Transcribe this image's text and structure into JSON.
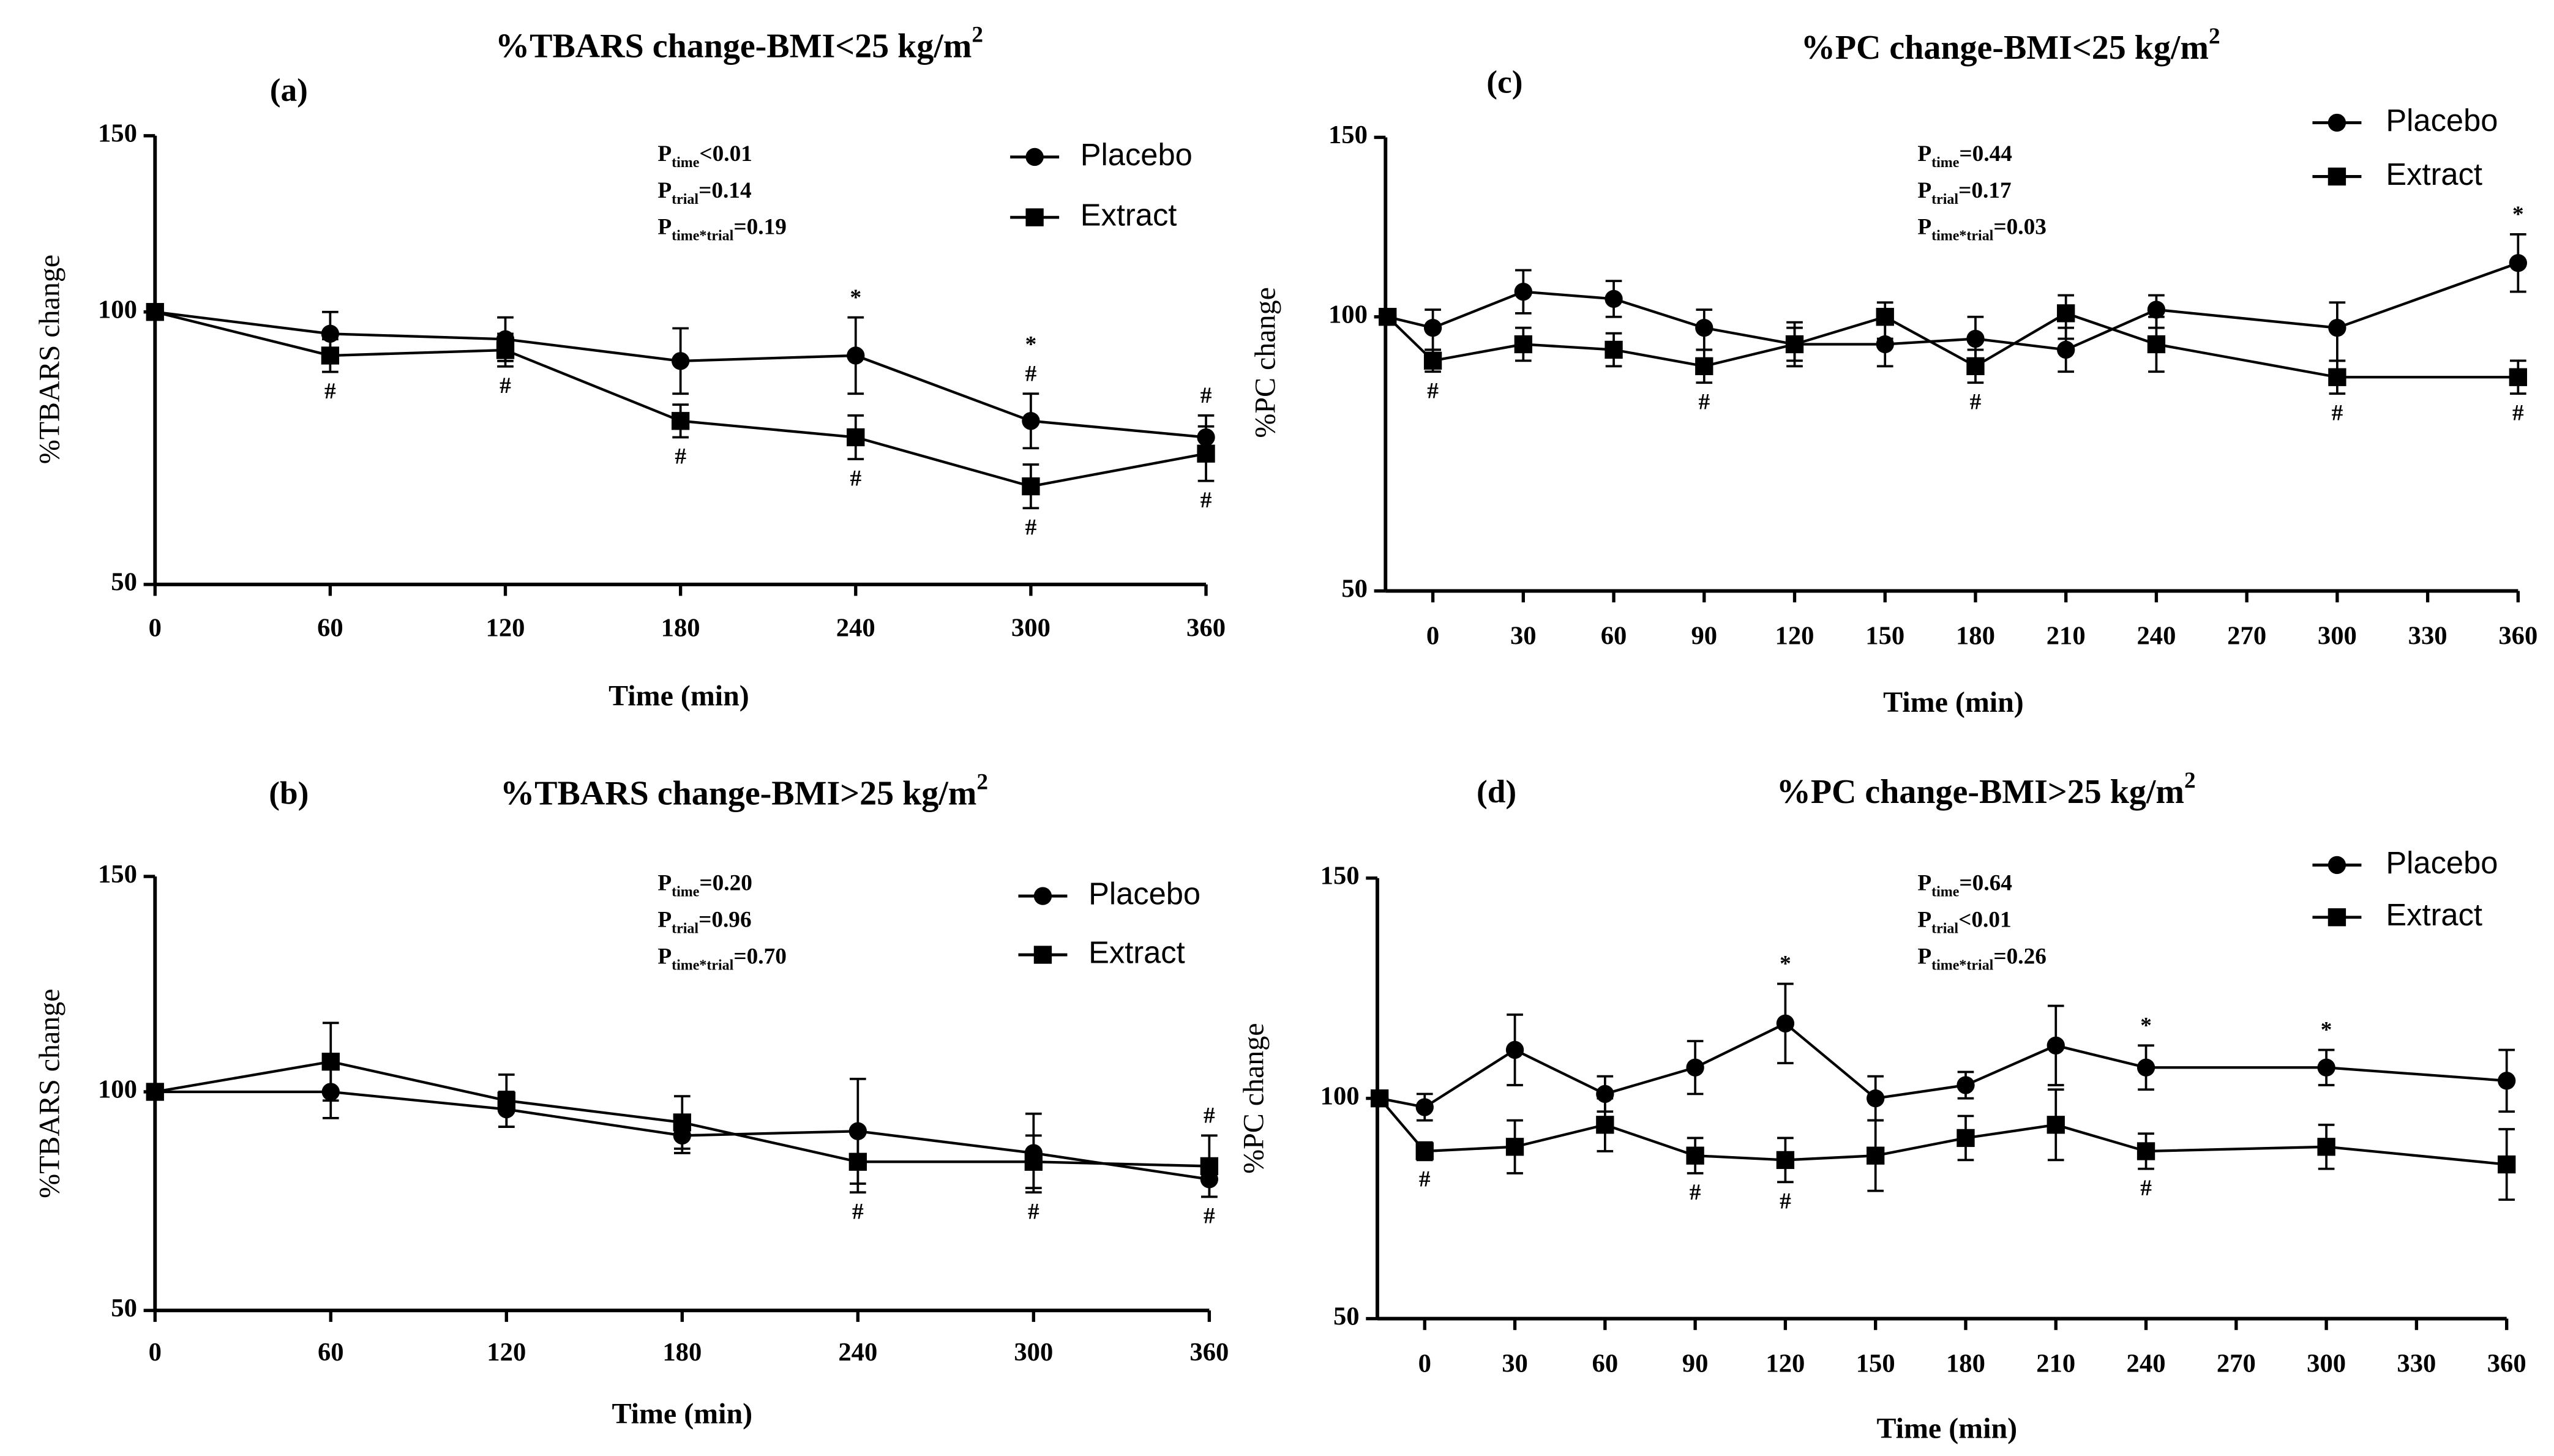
{
  "chart_data": [
    {
      "panel_label": "(a)",
      "type": "line",
      "title": "%TBARS change-BMI<25 kg/m",
      "title_sup": "2",
      "xlabel": "Time (min)",
      "ylabel": "%TBARS change",
      "xticks": [
        0,
        60,
        120,
        180,
        240,
        300,
        360
      ],
      "yticks": [
        50,
        100,
        150
      ],
      "xlim": [
        0,
        360
      ],
      "ylim": [
        50,
        150
      ],
      "grid": false,
      "legend": "top-right",
      "x": [
        0,
        60,
        120,
        180,
        240,
        300,
        360
      ],
      "series": [
        {
          "name": "Placebo",
          "marker": "circle",
          "color": "#000000",
          "values": [
            100,
            96,
            95,
            91,
            92,
            80,
            77
          ],
          "error": [
            0,
            4,
            4,
            6,
            7,
            5,
            4
          ]
        },
        {
          "name": "Extract",
          "marker": "square",
          "color": "#000000",
          "values": [
            100,
            92,
            93,
            80,
            77,
            68,
            74
          ],
          "error": [
            0,
            3,
            3,
            3,
            4,
            4,
            5
          ]
        }
      ],
      "stats": [
        {
          "symbol": "P",
          "sub": "time",
          "value": "<0.01"
        },
        {
          "symbol": "P",
          "sub": "trial",
          "value": "=0.14"
        },
        {
          "symbol": "P",
          "sub": "time*trial",
          "value": "=0.19"
        }
      ],
      "annotations": [
        {
          "x": 60,
          "mark": "#",
          "position": "below"
        },
        {
          "x": 120,
          "mark": "#",
          "position": "below"
        },
        {
          "x": 180,
          "mark": "#",
          "position": "below"
        },
        {
          "x": 240,
          "mark": "*",
          "position": "above"
        },
        {
          "x": 240,
          "mark": "#",
          "position": "below"
        },
        {
          "x": 300,
          "mark": "#",
          "position": "above"
        },
        {
          "x": 300,
          "mark": "*",
          "position": "above"
        },
        {
          "x": 300,
          "mark": "#",
          "position": "below"
        },
        {
          "x": 360,
          "mark": "#",
          "position": "above"
        },
        {
          "x": 360,
          "mark": "#",
          "position": "below"
        }
      ]
    },
    {
      "panel_label": "(b)",
      "type": "line",
      "title": "%TBARS change-BMI>25 kg/m",
      "title_sup": "2",
      "xlabel": "Time (min)",
      "ylabel": "%TBARS change",
      "xticks": [
        0,
        60,
        120,
        180,
        240,
        300,
        360
      ],
      "yticks": [
        50,
        100,
        150
      ],
      "xlim": [
        0,
        360
      ],
      "ylim": [
        50,
        150
      ],
      "grid": false,
      "legend": "top-right",
      "x": [
        0,
        60,
        120,
        180,
        240,
        300,
        360
      ],
      "series": [
        {
          "name": "Placebo",
          "marker": "circle",
          "color": "#000000",
          "values": [
            100,
            100,
            96,
            90,
            91,
            86,
            80
          ],
          "error": [
            0,
            6,
            4,
            4,
            12,
            9,
            4
          ]
        },
        {
          "name": "Extract",
          "marker": "square",
          "color": "#000000",
          "values": [
            100,
            107,
            98,
            93,
            84,
            84,
            83
          ],
          "error": [
            0,
            9,
            6,
            6,
            7,
            6,
            7
          ]
        }
      ],
      "stats": [
        {
          "symbol": "P",
          "sub": "time",
          "value": "=0.20"
        },
        {
          "symbol": "P",
          "sub": "trial",
          "value": "=0.96"
        },
        {
          "symbol": "P",
          "sub": "time*trial",
          "value": "=0.70"
        }
      ],
      "annotations": [
        {
          "x": 240,
          "mark": "#",
          "position": "below"
        },
        {
          "x": 300,
          "mark": "#",
          "position": "below"
        },
        {
          "x": 360,
          "mark": "#",
          "position": "above"
        },
        {
          "x": 360,
          "mark": "#",
          "position": "below"
        }
      ]
    },
    {
      "panel_label": "(c)",
      "type": "line",
      "title": "%PC change-BMI<25 kg/m",
      "title_sup": "2",
      "xlabel": "Time (min)",
      "ylabel": "%PC change",
      "xticks": [
        0,
        30,
        60,
        90,
        120,
        150,
        180,
        210,
        240,
        270,
        300,
        330,
        360
      ],
      "yticks": [
        50,
        100,
        150
      ],
      "xlim": [
        -15,
        360
      ],
      "ylim": [
        50,
        150
      ],
      "grid": false,
      "legend": "top-right",
      "x": [
        -15,
        0,
        30,
        60,
        90,
        120,
        150,
        180,
        210,
        240,
        300,
        360
      ],
      "series": [
        {
          "name": "Placebo",
          "marker": "circle",
          "color": "#000000",
          "values": [
            100,
            98,
            107,
            105,
            98,
            95,
            95,
            96,
            94,
            102,
            98,
            115
          ],
          "error": [
            0,
            4,
            6,
            5,
            4,
            4,
            4,
            4,
            4,
            4,
            6,
            8
          ]
        },
        {
          "name": "Extract",
          "marker": "square",
          "color": "#000000",
          "values": [
            100,
            92,
            95,
            94,
            91,
            95,
            100,
            91,
            101,
            95,
            89,
            89
          ],
          "error": [
            0,
            2,
            3,
            3,
            3,
            3,
            4,
            3,
            5,
            5,
            3,
            3
          ]
        }
      ],
      "stats": [
        {
          "symbol": "P",
          "sub": "time",
          "value": "=0.44"
        },
        {
          "symbol": "P",
          "sub": "trial",
          "value": "=0.17"
        },
        {
          "symbol": "P",
          "sub": "time*trial",
          "value": "=0.03"
        }
      ],
      "annotations": [
        {
          "x": 0,
          "mark": "#",
          "position": "below"
        },
        {
          "x": 90,
          "mark": "#",
          "position": "below"
        },
        {
          "x": 180,
          "mark": "#",
          "position": "below"
        },
        {
          "x": 300,
          "mark": "#",
          "position": "below"
        },
        {
          "x": 360,
          "mark": "*",
          "position": "above"
        },
        {
          "x": 360,
          "mark": "#",
          "position": "below"
        }
      ]
    },
    {
      "panel_label": "(d)",
      "type": "line",
      "title": "%PC change-BMI>25 kg/m",
      "title_sup": "2",
      "xlabel": "Time (min)",
      "ylabel": "%PC change",
      "xticks": [
        0,
        30,
        60,
        90,
        120,
        150,
        180,
        210,
        240,
        270,
        300,
        330,
        360
      ],
      "yticks": [
        50,
        100,
        150
      ],
      "xlim": [
        -15,
        360
      ],
      "ylim": [
        50,
        150
      ],
      "grid": false,
      "legend": "top-right",
      "x": [
        -15,
        0,
        30,
        60,
        90,
        120,
        150,
        180,
        210,
        240,
        300,
        360
      ],
      "series": [
        {
          "name": "Placebo",
          "marker": "circle",
          "color": "#000000",
          "values": [
            100,
            98,
            111,
            101,
            107,
            117,
            100,
            103,
            112,
            107,
            107,
            104
          ],
          "error": [
            0,
            3,
            8,
            4,
            6,
            9,
            5,
            3,
            9,
            5,
            4,
            7
          ]
        },
        {
          "name": "Extract",
          "marker": "square",
          "color": "#000000",
          "values": [
            100,
            88,
            89,
            94,
            87,
            86,
            87,
            91,
            94,
            88,
            89,
            85
          ],
          "error": [
            0,
            2,
            6,
            6,
            4,
            5,
            8,
            5,
            8,
            4,
            5,
            8
          ]
        }
      ],
      "stats": [
        {
          "symbol": "P",
          "sub": "time",
          "value": "=0.64"
        },
        {
          "symbol": "P",
          "sub": "trial",
          "value": "<0.01"
        },
        {
          "symbol": "P",
          "sub": "time*trial",
          "value": "=0.26"
        }
      ],
      "annotations": [
        {
          "x": 0,
          "mark": "#",
          "position": "below"
        },
        {
          "x": 90,
          "mark": "#",
          "position": "below"
        },
        {
          "x": 120,
          "mark": "*",
          "position": "above"
        },
        {
          "x": 120,
          "mark": "#",
          "position": "below"
        },
        {
          "x": 240,
          "mark": "*",
          "position": "above"
        },
        {
          "x": 240,
          "mark": "#",
          "position": "below"
        },
        {
          "x": 300,
          "mark": "*",
          "position": "above"
        }
      ]
    }
  ]
}
